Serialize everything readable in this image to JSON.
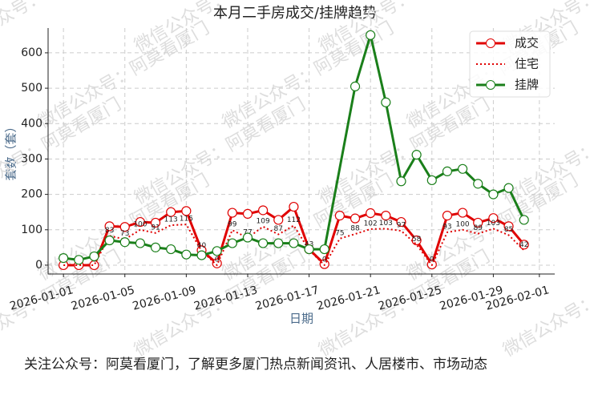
{
  "chart_data": {
    "type": "line",
    "title": "本月二手房成交/挂牌趋势",
    "xlabel": "日期",
    "ylabel": "套数（套）",
    "x": [
      "2026-01-01",
      "2026-01-02",
      "2026-01-03",
      "2026-01-04",
      "2026-01-05",
      "2026-01-06",
      "2026-01-07",
      "2026-01-08",
      "2026-01-09",
      "2026-01-10",
      "2026-01-11",
      "2026-01-12",
      "2026-01-13",
      "2026-01-14",
      "2026-01-15",
      "2026-01-16",
      "2026-01-17",
      "2026-01-18",
      "2026-01-19",
      "2026-01-20",
      "2026-01-21",
      "2026-01-22",
      "2026-01-23",
      "2026-01-24",
      "2026-01-25",
      "2026-01-26",
      "2026-01-27",
      "2026-01-28",
      "2026-01-29",
      "2026-01-30",
      "2026-01-31"
    ],
    "series": [
      {
        "name": "成交",
        "color": "#e00000",
        "linestyle": "solid",
        "markers": true,
        "data_labels": false,
        "values": [
          0,
          0,
          0,
          110,
          108,
          122,
          120,
          150,
          153,
          42,
          5,
          148,
          145,
          155,
          128,
          165,
          45,
          3,
          140,
          132,
          147,
          140,
          122,
          70,
          2,
          140,
          148,
          120,
          133,
          110,
          58
        ]
      },
      {
        "name": "住宅",
        "color": "#e00000",
        "linestyle": "dotted",
        "markers": false,
        "data_labels": true,
        "values": [
          0,
          0,
          0,
          83,
          73,
          100,
          91,
          113,
          115,
          40,
          0,
          99,
          77,
          109,
          87,
          112,
          43,
          0,
          75,
          88,
          102,
          103,
          97,
          58,
          0,
          93,
          100,
          89,
          103,
          85,
          42
        ]
      },
      {
        "name": "挂牌",
        "color": "#1a7f1a",
        "linestyle": "solid",
        "markers": true,
        "data_labels": false,
        "x": [
          "2026-01-01",
          "2026-01-02",
          "2026-01-03",
          "2026-01-04",
          "2026-01-05",
          "2026-01-06",
          "2026-01-07",
          "2026-01-08",
          "2026-01-09",
          "2026-01-10",
          "2026-01-11",
          "2026-01-12",
          "2026-01-13",
          "2026-01-14",
          "2026-01-15",
          "2026-01-16",
          "2026-01-17",
          "2026-01-18",
          "2026-01-20",
          "2026-01-21",
          "2026-01-22",
          "2026-01-23",
          "2026-01-24",
          "2026-01-25",
          "2026-01-26",
          "2026-01-27",
          "2026-01-28",
          "2026-01-29",
          "2026-01-30",
          "2026-01-31"
        ],
        "values": [
          20,
          15,
          25,
          70,
          65,
          62,
          50,
          45,
          30,
          28,
          40,
          62,
          78,
          62,
          62,
          62,
          45,
          45,
          505,
          650,
          460,
          237,
          312,
          240,
          265,
          272,
          230,
          200,
          218,
          128
        ]
      }
    ],
    "xlim": [
      "2025-12-31",
      "2026-02-02"
    ],
    "xticks": [
      "2026-01-01",
      "2026-01-05",
      "2026-01-09",
      "2026-01-13",
      "2026-01-17",
      "2026-01-21",
      "2026-01-25",
      "2026-01-29",
      "2026-02-01"
    ],
    "ylim": [
      -25,
      670
    ],
    "yticks": [
      0,
      100,
      200,
      300,
      400,
      500,
      600
    ],
    "grid": true,
    "legend": "upper right"
  },
  "watermark": "微信公众号：阿莫看厦门",
  "footer": "关注公众号：阿莫看厦门，了解更多厦门热点新闻资讯、人居楼市、市场动态"
}
